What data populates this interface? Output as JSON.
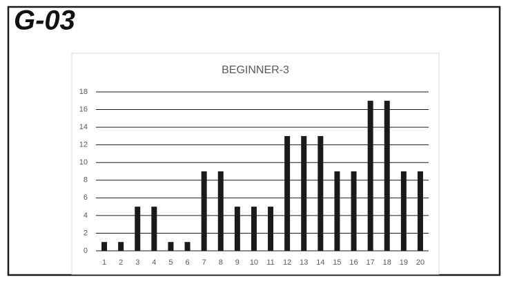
{
  "header": {
    "title": "G-03"
  },
  "chart_data": {
    "type": "bar",
    "title": "BEGINNER-3",
    "categories": [
      "1",
      "2",
      "3",
      "4",
      "5",
      "6",
      "7",
      "8",
      "9",
      "10",
      "11",
      "12",
      "13",
      "14",
      "15",
      "16",
      "17",
      "18",
      "19",
      "20"
    ],
    "values": [
      1,
      1,
      5,
      5,
      1,
      1,
      9,
      9,
      5,
      5,
      5,
      13,
      13,
      13,
      9,
      9,
      17,
      17,
      9,
      9
    ],
    "color": "#1a1a1a",
    "ylim": [
      0,
      18
    ],
    "yticks": [
      0,
      2,
      4,
      6,
      8,
      10,
      12,
      14,
      16,
      18
    ],
    "grid": true
  }
}
